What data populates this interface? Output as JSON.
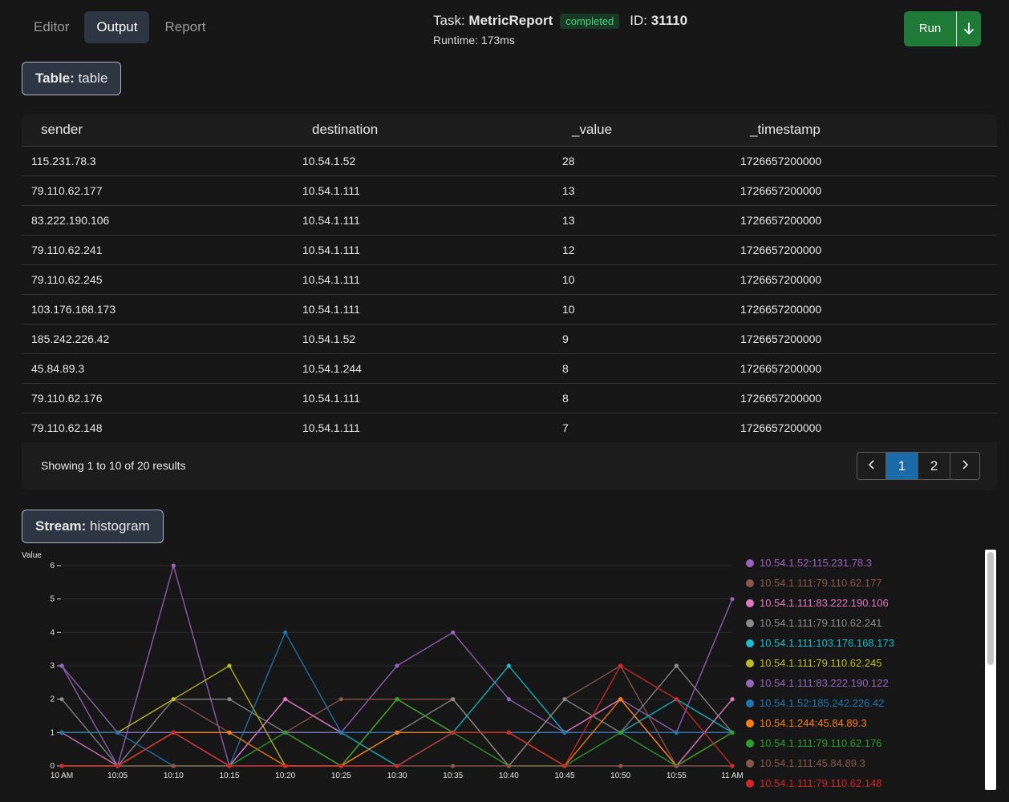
{
  "tabs": [
    "Editor",
    "Output",
    "Report"
  ],
  "task": {
    "label": "Task:",
    "name": "MetricReport",
    "status": "completed",
    "id_label": "ID:",
    "id": "31110",
    "runtime": "Runtime: 173ms"
  },
  "run_button": {
    "label": "Run"
  },
  "colors": {
    "accent": "#1f7a37",
    "active_page": "#1a6aa8",
    "status": "#4fd07a"
  },
  "table_section": {
    "prefix": "Table:",
    "name": "table"
  },
  "table": {
    "columns": [
      "sender",
      "destination",
      "_value",
      "_timestamp"
    ],
    "rows": [
      [
        "115.231.78.3",
        "10.54.1.52",
        "28",
        "1726657200000"
      ],
      [
        "79.110.62.177",
        "10.54.1.111",
        "13",
        "1726657200000"
      ],
      [
        "83.222.190.106",
        "10.54.1.111",
        "13",
        "1726657200000"
      ],
      [
        "79.110.62.241",
        "10.54.1.111",
        "12",
        "1726657200000"
      ],
      [
        "79.110.62.245",
        "10.54.1.111",
        "10",
        "1726657200000"
      ],
      [
        "103.176.168.173",
        "10.54.1.111",
        "10",
        "1726657200000"
      ],
      [
        "185.242.226.42",
        "10.54.1.52",
        "9",
        "1726657200000"
      ],
      [
        "45.84.89.3",
        "10.54.1.244",
        "8",
        "1726657200000"
      ],
      [
        "79.110.62.176",
        "10.54.1.111",
        "8",
        "1726657200000"
      ],
      [
        "79.110.62.148",
        "10.54.1.111",
        "7",
        "1726657200000"
      ]
    ]
  },
  "pagination": {
    "summary": "Showing 1 to 10 of 20 results",
    "pages": [
      "1",
      "2"
    ],
    "current": "1",
    "prev_icon": "chevron-left-icon",
    "next_icon": "chevron-right-icon"
  },
  "stream_section": {
    "prefix": "Stream:",
    "name": "histogram"
  },
  "chart_data": {
    "type": "line",
    "ylabel": "Value",
    "ylim": [
      0,
      6
    ],
    "yticks": [
      0,
      1,
      2,
      3,
      4,
      5,
      6
    ],
    "grid": true,
    "legend_position": "right",
    "x": [
      "10 AM",
      "10:05",
      "10:10",
      "10:15",
      "10:20",
      "10:25",
      "10:30",
      "10:35",
      "10:40",
      "10:45",
      "10:50",
      "10:55",
      "11 AM"
    ],
    "series": [
      {
        "name": "10.54.1.52:115.231.78.3",
        "color": "#9b5fc0",
        "values": [
          3,
          0,
          6,
          0,
          2,
          1,
          3,
          4,
          2,
          1,
          2,
          1,
          5
        ]
      },
      {
        "name": "10.54.1.111:79.110.62.177",
        "color": "#8c564b",
        "values": [
          1,
          1,
          2,
          1,
          1,
          2,
          2,
          2,
          0,
          2,
          3,
          0,
          2
        ]
      },
      {
        "name": "10.54.1.111:83.222.190.106",
        "color": "#e377c2",
        "values": [
          1,
          0,
          1,
          0,
          2,
          1,
          1,
          1,
          1,
          1,
          2,
          0,
          2
        ]
      },
      {
        "name": "10.54.1.111:79.110.62.241",
        "color": "#8a8a8a",
        "values": [
          2,
          0,
          2,
          2,
          1,
          0,
          1,
          2,
          0,
          2,
          1,
          3,
          1
        ]
      },
      {
        "name": "10.54.1.111:103.176.168.173",
        "color": "#17becf",
        "values": [
          1,
          1,
          1,
          1,
          1,
          1,
          0,
          1,
          3,
          1,
          1,
          2,
          1
        ]
      },
      {
        "name": "10.54.1.111:79.110.62.245",
        "color": "#bcbd22",
        "values": [
          1,
          1,
          2,
          3,
          0,
          0,
          2,
          1,
          1,
          1,
          1,
          1,
          1
        ]
      },
      {
        "name": "10.54.1.111:83.222.190.122",
        "color": "#9467bd",
        "values": [
          3,
          1,
          1,
          1,
          1,
          1,
          1,
          1,
          1,
          1,
          1,
          1,
          1
        ]
      },
      {
        "name": "10.54.1.52:185.242.226.42",
        "color": "#1f77b4",
        "values": [
          1,
          1,
          0,
          0,
          4,
          1,
          1,
          1,
          1,
          1,
          1,
          1,
          1
        ]
      },
      {
        "name": "10.54.1.244:45.84.89.3",
        "color": "#ff7f0e",
        "values": [
          0,
          0,
          1,
          1,
          0,
          0,
          1,
          1,
          1,
          0,
          2,
          0,
          1
        ]
      },
      {
        "name": "10.54.1.111:79.110.62.176",
        "color": "#2ca02c",
        "values": [
          0,
          0,
          0,
          0,
          1,
          0,
          2,
          1,
          0,
          0,
          1,
          0,
          1
        ]
      },
      {
        "name": "10.54.1.111:45.84.89.3",
        "color": "#8c564b",
        "values": [
          0,
          0,
          0,
          0,
          0,
          0,
          0,
          0,
          0,
          0,
          0,
          0,
          0
        ]
      },
      {
        "name": "10.54.1.111:79.110.62.148",
        "color": "#d62728",
        "values": [
          0,
          0,
          1,
          0,
          0,
          0,
          0,
          1,
          1,
          0,
          3,
          2,
          0
        ]
      }
    ]
  }
}
